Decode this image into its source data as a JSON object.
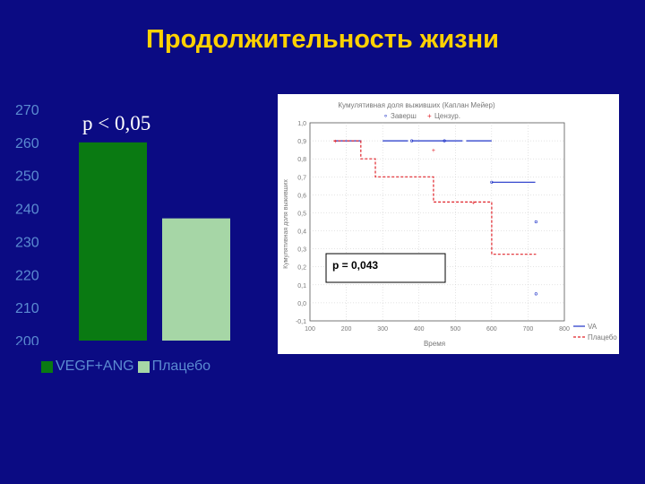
{
  "slide": {
    "title": "Продолжительность жизни",
    "pvalue_left": "p < 0,05"
  },
  "colors": {
    "background": "#0b0b83",
    "title": "#ffd200",
    "vegf_bar": "#0a7a12",
    "placebo_bar": "#a6d6a6",
    "left_axis_text": "#5b8bd1",
    "treatment_line": "#1f33c8",
    "placebo_line": "#e0242b"
  },
  "chart_data": [
    {
      "type": "bar",
      "categories": [
        "VEGF+ANG",
        "Плацебо"
      ],
      "values": [
        260,
        237
      ],
      "yticks": [
        200,
        210,
        220,
        230,
        240,
        250,
        260,
        270
      ],
      "ylim": [
        200,
        270
      ],
      "legend": [
        "VEGF+ANG",
        "Плацебо"
      ],
      "legend_placement": "bottom",
      "annotation": "p < 0,05"
    },
    {
      "type": "line",
      "title": "Кумулятивная доля выживших (Каплан Мейер)",
      "xlabel": "Время",
      "ylabel": "Кумулятивная доля выживших",
      "xlim": [
        100,
        800
      ],
      "ylim": [
        -0.1,
        1.0
      ],
      "xticks": [
        100,
        200,
        300,
        400,
        500,
        600,
        700,
        800
      ],
      "yticks": [
        "1,0",
        "0,9",
        "0,8",
        "0,7",
        "0,6",
        "0,5",
        "0,4",
        "0,3",
        "0,2",
        "0,1",
        "0,0",
        "-0,1"
      ],
      "ytick_values": [
        1.0,
        0.9,
        0.8,
        0.7,
        0.6,
        0.5,
        0.4,
        0.3,
        0.2,
        0.1,
        0.0,
        -0.1
      ],
      "legend_top": [
        "Заверш",
        "Цензур."
      ],
      "legend_bottom": [
        "VA",
        "Плацебо"
      ],
      "annotation": "p = 0,043",
      "series": [
        {
          "color": "#1f33c8",
          "dash": "solid",
          "segments": [
            [
              170,
              240,
              0.9
            ],
            [
              300,
              370,
              0.9
            ],
            [
              380,
              520,
              0.9
            ],
            [
              530,
              600,
              0.9
            ],
            [
              600,
              720,
              0.67
            ]
          ],
          "censored": [
            [
              380,
              0.9
            ],
            [
              470,
              0.9
            ],
            [
              600,
              0.67
            ],
            [
              722,
              0.45
            ],
            [
              722,
              0.05
            ]
          ]
        },
        {
          "color": "#e0242b",
          "dash": "dashed",
          "steps": [
            [
              165,
              0.9
            ],
            [
              240,
              0.9
            ],
            [
              240,
              0.8
            ],
            [
              280,
              0.8
            ],
            [
              280,
              0.7
            ],
            [
              440,
              0.7
            ],
            [
              440,
              0.56
            ],
            [
              600,
              0.56
            ],
            [
              600,
              0.27
            ],
            [
              722,
              0.27
            ]
          ],
          "censored": [
            [
              170,
              0.9
            ],
            [
              440,
              0.85
            ],
            [
              550,
              0.56
            ]
          ]
        }
      ]
    }
  ]
}
